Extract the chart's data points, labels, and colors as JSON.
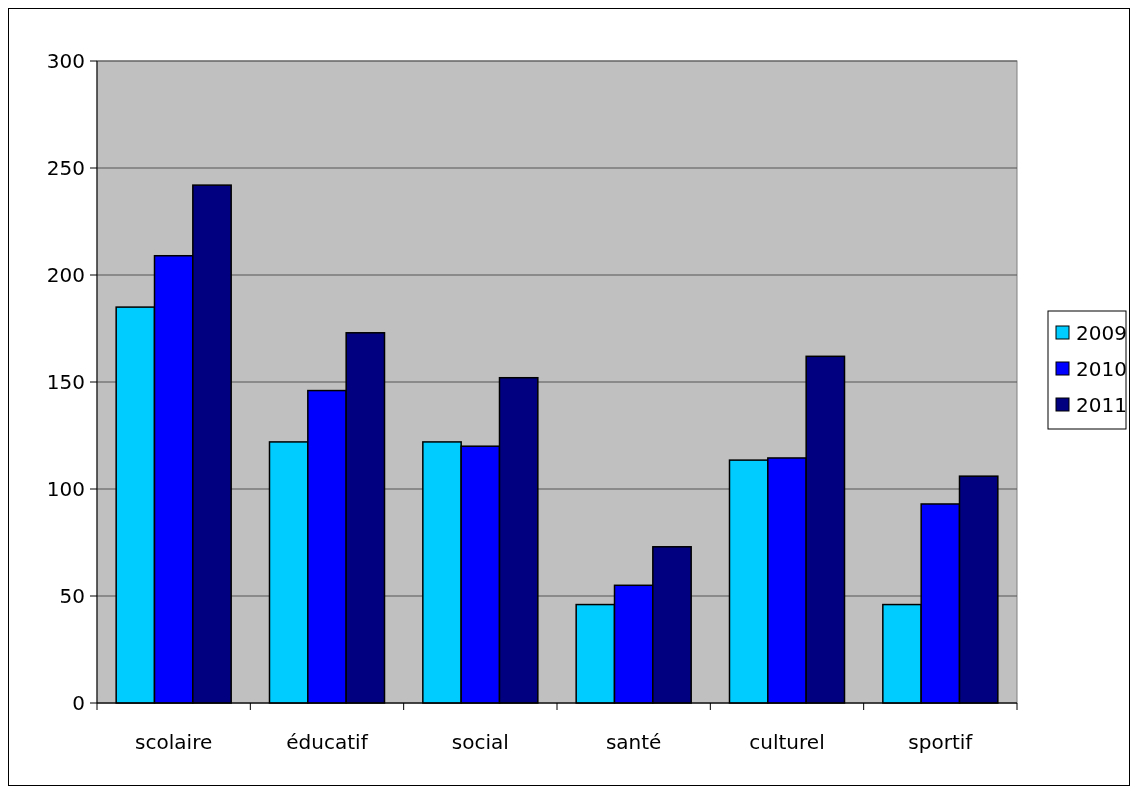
{
  "chart_data": {
    "type": "bar",
    "categories": [
      "scolaire",
      "éducatif",
      "social",
      "santé",
      "culturel",
      "sportif"
    ],
    "series": [
      {
        "name": "2009",
        "color": "#00ccff",
        "values": [
          185,
          122,
          122,
          46,
          113.5,
          46
        ]
      },
      {
        "name": "2010",
        "color": "#0000ff",
        "values": [
          209,
          146,
          120,
          55,
          114.5,
          93
        ]
      },
      {
        "name": "2011",
        "color": "#000080",
        "values": [
          242,
          173,
          152,
          73,
          162,
          106
        ]
      }
    ],
    "ylim": [
      0,
      300
    ],
    "yticks": [
      0,
      50,
      100,
      150,
      200,
      250,
      300
    ],
    "grid": "y",
    "legend": "right"
  }
}
